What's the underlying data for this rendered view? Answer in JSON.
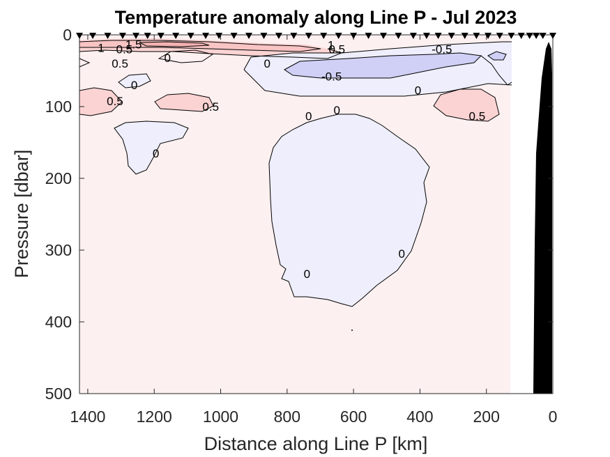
{
  "chart_data": {
    "type": "heatmap",
    "title": "Temperature anomaly along Line P - Jul 2023",
    "xlabel": "Distance along Line P [km]",
    "ylabel": "Pressure [dbar]",
    "xlim": [
      1425,
      0
    ],
    "ylim": [
      0,
      500
    ],
    "x_reversed": true,
    "y_reversed": true,
    "x_ticks": [
      1400,
      1200,
      1000,
      800,
      600,
      400,
      200,
      0
    ],
    "y_ticks": [
      0,
      100,
      200,
      300,
      400,
      500
    ],
    "x_tick_labels": [
      "1400",
      "1200",
      "1000",
      "800",
      "600",
      "400",
      "200",
      "0"
    ],
    "y_tick_labels": [
      "0",
      "100",
      "200",
      "300",
      "400",
      "500"
    ],
    "grid": false,
    "data_extent_km": [
      1425,
      128
    ],
    "colors": {
      "background_anomaly": "#fdf0f0",
      "anomaly_0_5": "#fbd3d3",
      "anomaly_1": "#f9c4c4",
      "anomaly_1_5": "#f6b2b2",
      "anomaly_neg_0": "#eeeefc",
      "anomaly_neg_0_5": "#d0d0f6",
      "bathymetry": "#000000"
    },
    "station_markers_km": [
      1425,
      1385,
      1340,
      1295,
      1255,
      1220,
      1180,
      1135,
      1090,
      1045,
      1005,
      960,
      915,
      870,
      825,
      780,
      735,
      690,
      645,
      600,
      555,
      510,
      465,
      420,
      380,
      345,
      305,
      265,
      230,
      195,
      160,
      125,
      95,
      70,
      50,
      30,
      0
    ],
    "contours": [
      {
        "level": "1.5",
        "positions": [
          [
            1262,
            13
          ]
        ]
      },
      {
        "level": "1",
        "positions": [
          [
            1360,
            18
          ],
          [
            668,
            14
          ]
        ]
      },
      {
        "level": "0.5",
        "positions": [
          [
            1290,
            20
          ],
          [
            1303,
            40
          ],
          [
            650,
            20
          ],
          [
            1318,
            92
          ],
          [
            1030,
            100
          ],
          [
            228,
            113
          ]
        ]
      },
      {
        "level": "0",
        "positions": [
          [
            1160,
            32
          ],
          [
            860,
            40
          ],
          [
            1260,
            70
          ],
          [
            1195,
            165
          ],
          [
            735,
            113
          ],
          [
            650,
            105
          ],
          [
            406,
            77
          ],
          [
            740,
            333
          ],
          [
            455,
            305
          ]
        ]
      },
      {
        "level": "-0.5",
        "positions": [
          [
            334,
            20
          ],
          [
            666,
            58
          ]
        ]
      },
      {
        "level": "",
        "positions": [
          [
            236,
            10
          ]
        ]
      }
    ]
  }
}
